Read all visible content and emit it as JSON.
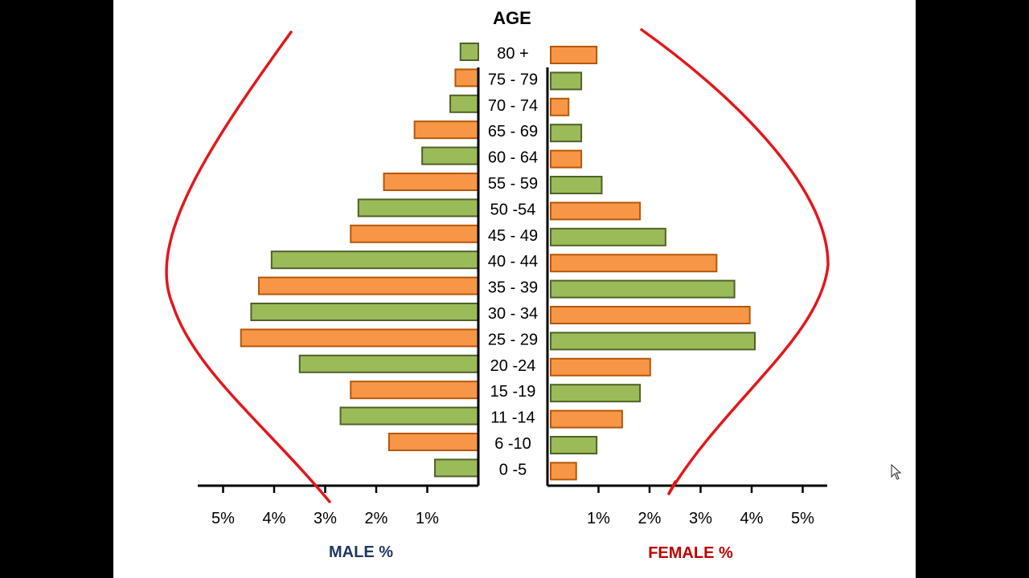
{
  "chart_data": {
    "type": "bar",
    "subtype": "population-pyramid",
    "title": "AGE",
    "categories": [
      "80 +",
      "75 - 79",
      "70 - 74",
      "65 - 69",
      "60 - 64",
      "55 - 59",
      "50 -54",
      "45 - 49",
      "40 - 44",
      "35 - 39",
      "30 - 34",
      "25 - 29",
      "20 -24",
      "15 -19",
      "11 -14",
      "6 -10",
      "0 -5"
    ],
    "series": [
      {
        "name": "MALE %",
        "values": [
          0.35,
          0.45,
          0.55,
          1.25,
          1.1,
          1.85,
          2.35,
          2.5,
          4.05,
          4.3,
          4.45,
          4.65,
          3.5,
          2.5,
          2.7,
          1.75,
          0.85
        ],
        "bar_colors": [
          "green",
          "orange",
          "green",
          "orange",
          "green",
          "orange",
          "green",
          "orange",
          "green",
          "orange",
          "green",
          "orange",
          "green",
          "orange",
          "green",
          "orange",
          "green"
        ]
      },
      {
        "name": "FEMALE %",
        "values": [
          0.9,
          0.6,
          0.35,
          0.6,
          0.6,
          1.0,
          1.75,
          2.25,
          3.25,
          3.6,
          3.9,
          4.0,
          1.95,
          1.75,
          1.4,
          0.9,
          0.5
        ],
        "bar_colors": [
          "orange",
          "green",
          "orange",
          "green",
          "orange",
          "green",
          "orange",
          "green",
          "orange",
          "green",
          "orange",
          "green",
          "orange",
          "green",
          "orange",
          "green",
          "orange"
        ]
      }
    ],
    "male_ticks": [
      "5%",
      "4%",
      "3%",
      "2%",
      "1%"
    ],
    "female_ticks": [
      "1%",
      "2%",
      "3%",
      "4%",
      "5%"
    ],
    "xlim": [
      0,
      5.5
    ],
    "male_axis_label": "MALE %",
    "female_axis_label": "FEMALE %",
    "colors": {
      "green": "#9bbb59",
      "green_stroke": "#4f6228",
      "orange": "#f79646",
      "orange_stroke": "#b65708",
      "curve": "#e3171c",
      "male_label": "#1f3864",
      "female_label": "#c00000"
    }
  }
}
